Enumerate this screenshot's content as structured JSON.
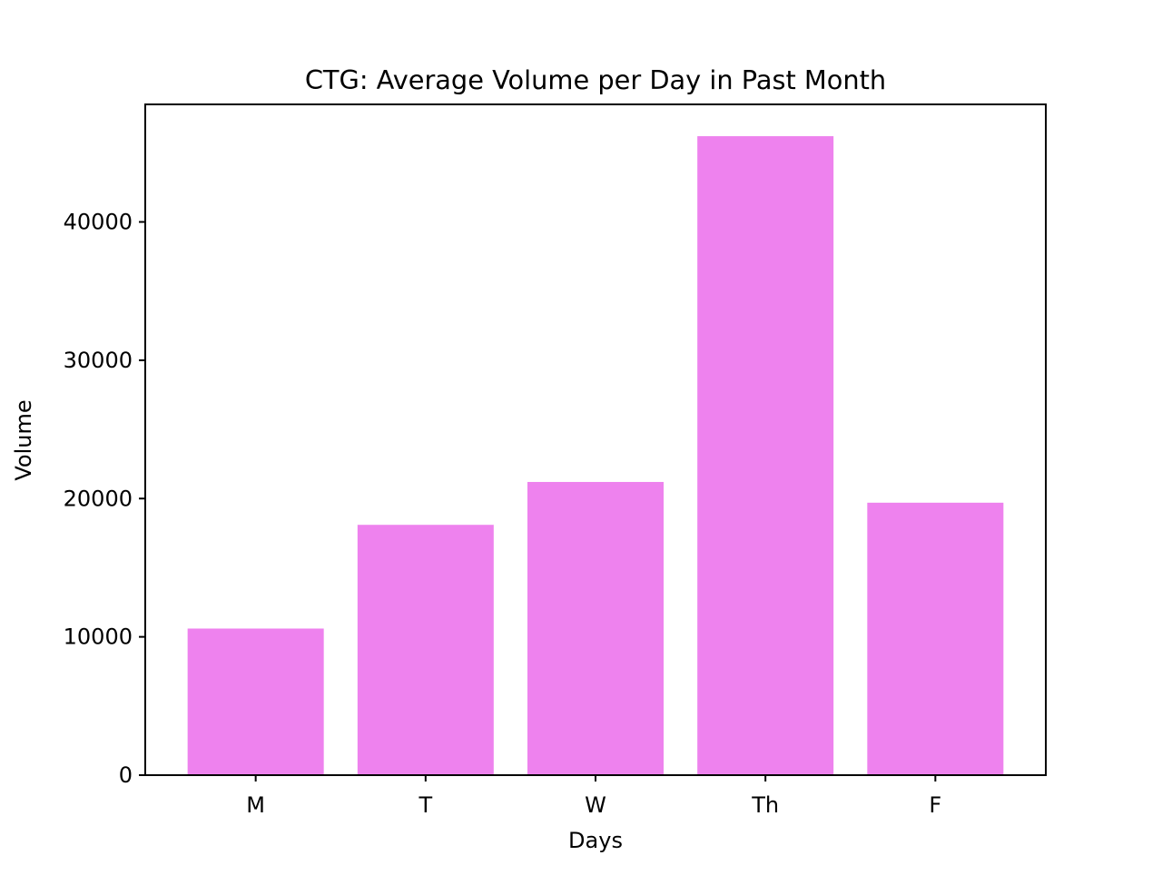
{
  "chart_data": {
    "type": "bar",
    "title": "CTG: Average Volume per Day in Past Month",
    "xlabel": "Days",
    "ylabel": "Volume",
    "categories": [
      "M",
      "T",
      "W",
      "Th",
      "F"
    ],
    "values": [
      10600,
      18100,
      21200,
      46200,
      19700
    ],
    "ylim": [
      0,
      48500
    ],
    "yticks": [
      0,
      10000,
      20000,
      30000,
      40000
    ],
    "ytick_labels": [
      "0",
      "10000",
      "20000",
      "30000",
      "40000"
    ],
    "grid": false,
    "legend": "none",
    "bar_color": "#ee82ee"
  }
}
